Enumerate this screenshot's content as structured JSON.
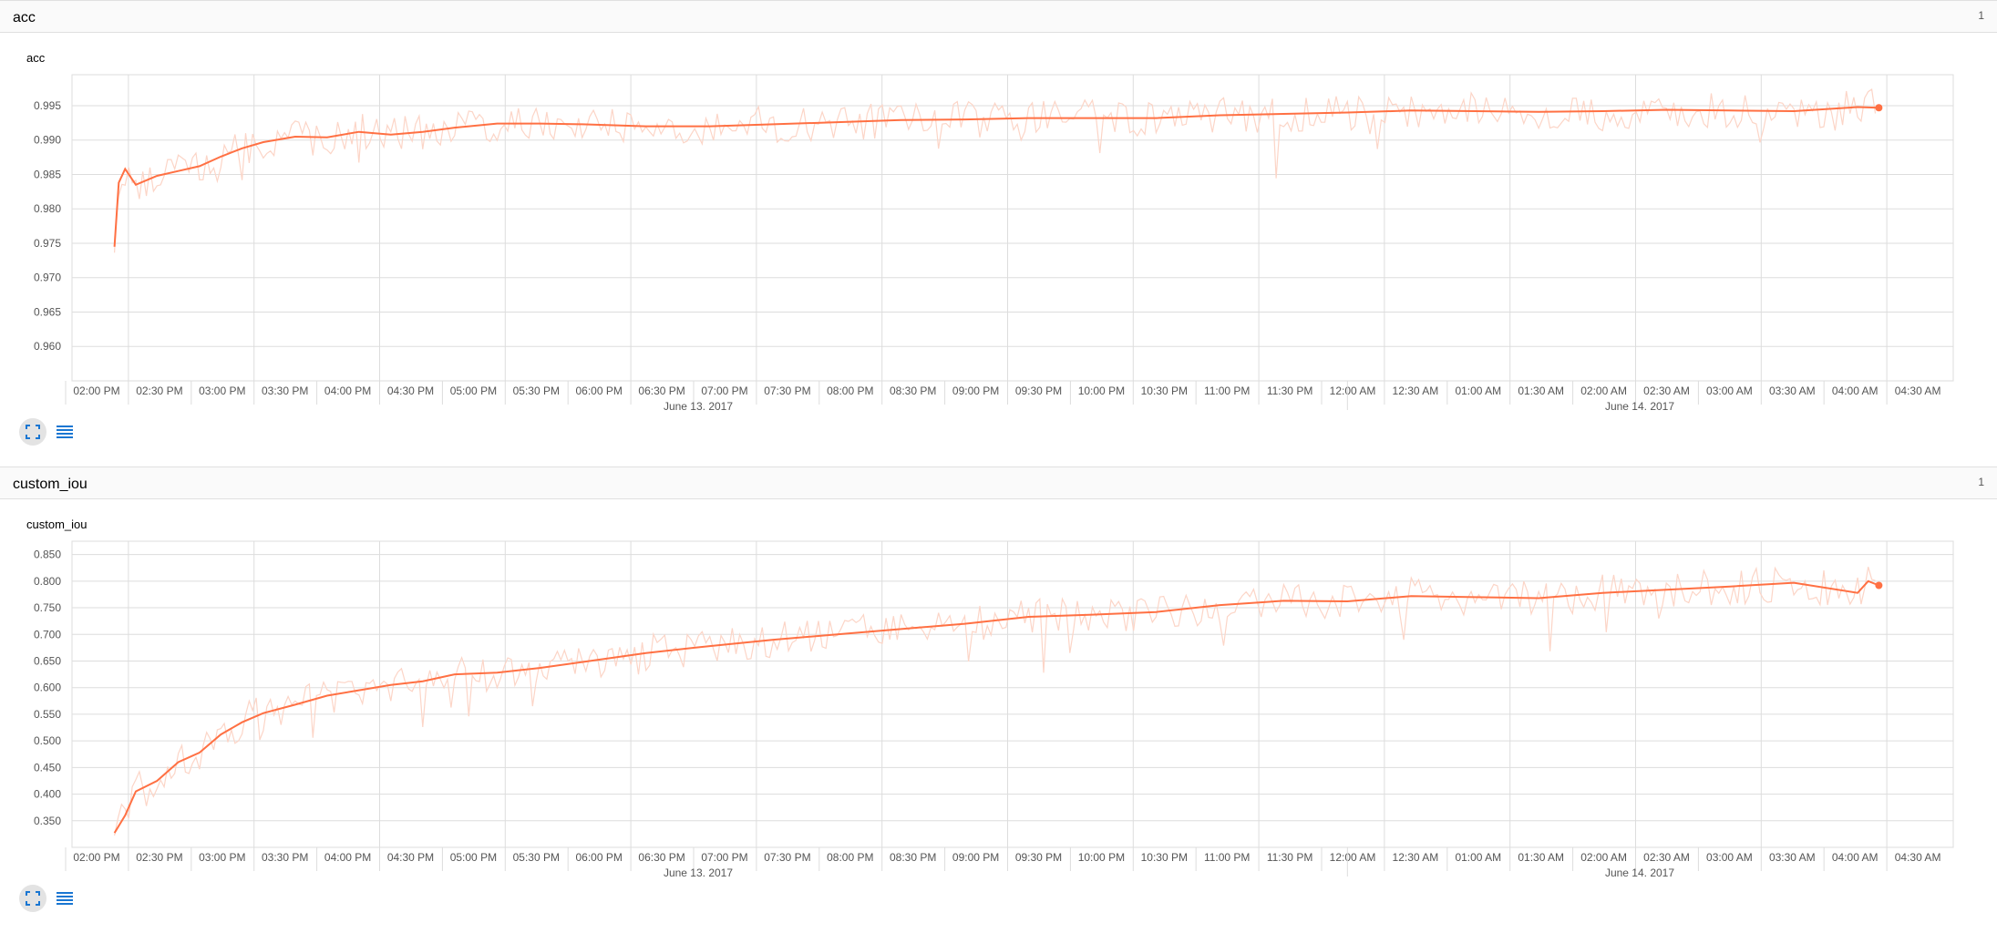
{
  "colors": {
    "smoothed": "#ff7043",
    "raw": "#fcd5c7",
    "grid": "#dddddd",
    "axis": "#9e9e9e"
  },
  "panels": [
    {
      "title": "acc",
      "count": "1"
    },
    {
      "title": "custom_iou",
      "count": "1"
    }
  ],
  "icons": {
    "expand": "fullscreen-icon",
    "data": "list-icon"
  },
  "chart_data": [
    {
      "type": "line",
      "title": "acc",
      "xlabel": "",
      "ylabel": "",
      "grid": true,
      "xlim": [
        "2017-06-13 14:00",
        "2017-06-14 04:45"
      ],
      "ylim": [
        0.955,
        0.9995
      ],
      "y_ticks": [
        0.96,
        0.965,
        0.97,
        0.975,
        0.98,
        0.985,
        0.99,
        0.995
      ],
      "x_tick_labels": [
        "02:00 PM",
        "02:30 PM",
        "03:00 PM",
        "03:30 PM",
        "04:00 PM",
        "04:30 PM",
        "05:00 PM",
        "05:30 PM",
        "06:00 PM",
        "06:30 PM",
        "07:00 PM",
        "07:30 PM",
        "08:00 PM",
        "08:30 PM",
        "09:00 PM",
        "09:30 PM",
        "10:00 PM",
        "10:30 PM",
        "11:00 PM",
        "11:30 PM",
        "12:00 AM",
        "12:30 AM",
        "01:00 AM",
        "01:30 AM",
        "02:00 AM",
        "02:30 AM",
        "03:00 AM",
        "03:30 AM",
        "04:00 AM",
        "04:30 AM"
      ],
      "date_labels": [
        "June 13, 2017",
        "June 14, 2017"
      ],
      "series": [
        {
          "x": [
            "2017-06-13 14:20",
            "2017-06-13 14:22",
            "2017-06-13 14:25",
            "2017-06-13 14:30",
            "2017-06-13 14:40",
            "2017-06-13 14:50",
            "2017-06-13 15:00",
            "2017-06-13 15:10",
            "2017-06-13 15:20",
            "2017-06-13 15:30",
            "2017-06-13 15:45",
            "2017-06-13 16:00",
            "2017-06-13 16:15",
            "2017-06-13 16:30",
            "2017-06-13 16:45",
            "2017-06-13 17:00",
            "2017-06-13 17:20",
            "2017-06-13 17:40",
            "2017-06-13 18:00",
            "2017-06-13 18:30",
            "2017-06-13 19:00",
            "2017-06-13 19:30",
            "2017-06-13 20:00",
            "2017-06-13 20:30",
            "2017-06-13 21:00",
            "2017-06-13 21:30",
            "2017-06-13 22:00",
            "2017-06-13 22:30",
            "2017-06-13 23:00",
            "2017-06-13 23:30",
            "2017-06-14 00:00",
            "2017-06-14 00:30",
            "2017-06-14 01:00",
            "2017-06-14 01:30",
            "2017-06-14 02:00",
            "2017-06-14 02:30",
            "2017-06-14 03:00",
            "2017-06-14 03:30",
            "2017-06-14 04:00",
            "2017-06-14 04:10"
          ],
          "y": [
            0.9745,
            0.9838,
            0.9858,
            0.9835,
            0.9848,
            0.9855,
            0.9862,
            0.9876,
            0.9888,
            0.9897,
            0.9905,
            0.9904,
            0.9912,
            0.9908,
            0.9912,
            0.9918,
            0.9924,
            0.9924,
            0.9923,
            0.992,
            0.992,
            0.9923,
            0.9926,
            0.9929,
            0.993,
            0.9932,
            0.9932,
            0.9932,
            0.9936,
            0.9938,
            0.994,
            0.9943,
            0.9942,
            0.9941,
            0.9942,
            0.9944,
            0.9943,
            0.9942,
            0.9948,
            0.9947
          ]
        }
      ]
    },
    {
      "type": "line",
      "title": "custom_iou",
      "xlabel": "",
      "ylabel": "",
      "grid": true,
      "xlim": [
        "2017-06-13 14:00",
        "2017-06-14 04:45"
      ],
      "ylim": [
        0.3,
        0.875
      ],
      "y_ticks": [
        0.35,
        0.4,
        0.45,
        0.5,
        0.55,
        0.6,
        0.65,
        0.7,
        0.75,
        0.8,
        0.85
      ],
      "x_tick_labels": [
        "02:00 PM",
        "02:30 PM",
        "03:00 PM",
        "03:30 PM",
        "04:00 PM",
        "04:30 PM",
        "05:00 PM",
        "05:30 PM",
        "06:00 PM",
        "06:30 PM",
        "07:00 PM",
        "07:30 PM",
        "08:00 PM",
        "08:30 PM",
        "09:00 PM",
        "09:30 PM",
        "10:00 PM",
        "10:30 PM",
        "11:00 PM",
        "11:30 PM",
        "12:00 AM",
        "12:30 AM",
        "01:00 AM",
        "01:30 AM",
        "02:00 AM",
        "02:30 AM",
        "03:00 AM",
        "03:30 AM",
        "04:00 AM",
        "04:30 AM"
      ],
      "date_labels": [
        "June 13, 2017",
        "June 14, 2017"
      ],
      "series": [
        {
          "x": [
            "2017-06-13 14:20",
            "2017-06-13 14:25",
            "2017-06-13 14:30",
            "2017-06-13 14:40",
            "2017-06-13 14:50",
            "2017-06-13 15:00",
            "2017-06-13 15:10",
            "2017-06-13 15:20",
            "2017-06-13 15:30",
            "2017-06-13 15:45",
            "2017-06-13 16:00",
            "2017-06-13 16:15",
            "2017-06-13 16:30",
            "2017-06-13 16:45",
            "2017-06-13 17:00",
            "2017-06-13 17:20",
            "2017-06-13 17:40",
            "2017-06-13 18:00",
            "2017-06-13 18:30",
            "2017-06-13 19:00",
            "2017-06-13 19:30",
            "2017-06-13 20:00",
            "2017-06-13 20:30",
            "2017-06-13 21:00",
            "2017-06-13 21:30",
            "2017-06-13 22:00",
            "2017-06-13 22:30",
            "2017-06-13 23:00",
            "2017-06-13 23:30",
            "2017-06-14 00:00",
            "2017-06-14 00:30",
            "2017-06-14 01:00",
            "2017-06-14 01:30",
            "2017-06-14 02:00",
            "2017-06-14 02:30",
            "2017-06-14 03:00",
            "2017-06-14 03:30",
            "2017-06-14 04:00",
            "2017-06-14 04:05",
            "2017-06-14 04:10"
          ],
          "y": [
            0.327,
            0.36,
            0.405,
            0.425,
            0.46,
            0.478,
            0.512,
            0.535,
            0.552,
            0.568,
            0.585,
            0.595,
            0.605,
            0.612,
            0.625,
            0.628,
            0.637,
            0.648,
            0.665,
            0.678,
            0.69,
            0.7,
            0.71,
            0.72,
            0.733,
            0.737,
            0.742,
            0.755,
            0.763,
            0.762,
            0.772,
            0.77,
            0.768,
            0.778,
            0.784,
            0.79,
            0.797,
            0.778,
            0.8,
            0.792
          ]
        }
      ]
    }
  ]
}
